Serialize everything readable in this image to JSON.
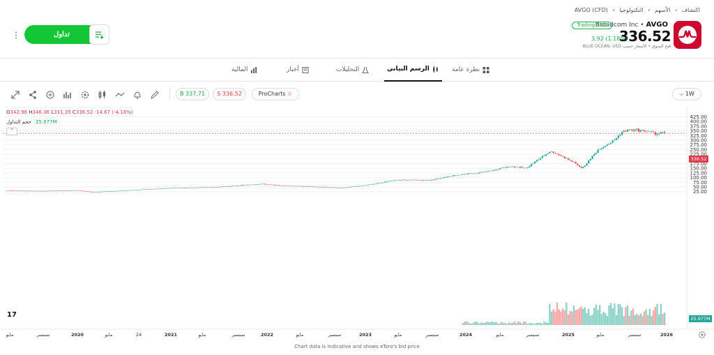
{
  "breadcrumb": [
    "اكتشاف",
    "›",
    "الأسهم",
    "›",
    "التكنولوجيا",
    "›",
    "AVGO (CFD)"
  ],
  "instrument": {
    "name": "Broadcom Inc",
    "separator": "•",
    "ticker": "AVGO",
    "badge": "Trading 24/5",
    "price": "336.52",
    "change": "3.92 (1.18%)",
    "subline": "فتح السوق • الأسعار حسب BLUE OCEAN، USD"
  },
  "actions": {
    "trade_label": "تداول",
    "more_label": "⋮"
  },
  "tabs": [
    {
      "label": "نظرة عامة",
      "icon": "grid-icon"
    },
    {
      "label": "الرسم البياني",
      "icon": "candles-icon"
    },
    {
      "label": "التحليلات",
      "icon": "flask-icon"
    },
    {
      "label": "أخبار",
      "icon": "news-icon"
    },
    {
      "label": "المالية",
      "icon": "bar-chart-icon"
    }
  ],
  "toolbar": {
    "buy": "B 337.71",
    "sell": "S 336.52",
    "pro": "ProCharts",
    "timeframe": "1W",
    "tools": [
      "expand-icon",
      "share-icon",
      "add-indicator-icon",
      "indicators-icon",
      "settings-icon",
      "candle-type-icon",
      "line-icon",
      "alert-icon",
      "draw-icon"
    ]
  },
  "ohlc": {
    "o_label": "O",
    "o": "342.98",
    "h_label": "H",
    "h": "346.36",
    "l_label": "L",
    "l": "331.35",
    "c_label": "C",
    "c": "336.52",
    "change": "-14.67 (-4.18%)"
  },
  "volume": {
    "label": "حجم التداول",
    "value": "25.977M",
    "collapse": "˄"
  },
  "colors": {
    "up": "#26a69a",
    "down": "#ef5350",
    "brand_green": "#13c636",
    "logo_red": "#cc092f"
  },
  "price_tag": "336.52",
  "volume_tag": "25.977M",
  "tv_logo": "17",
  "footnote": "Chart data is indicative and shows eToro's bid price",
  "chart_data": {
    "type": "candlestick",
    "y_axis_labels": [
      "425.00",
      "400.00",
      "375.00",
      "350.00",
      "325.00",
      "300.00",
      "275.00",
      "250.00",
      "225.00",
      "200.00",
      "175.00",
      "150.00",
      "125.00",
      "100.00",
      "75.00",
      "50.00",
      "25.00"
    ],
    "x_axis_labels": [
      "مايو",
      "سبتمبر",
      "2020",
      "مايو",
      "24",
      "2021",
      "مايو",
      "سبتمبر",
      "2022",
      "مايو",
      "سبتمبر",
      "2023",
      "مايو",
      "سبتمبر",
      "2024",
      "مايو",
      "سبتمبر",
      "2025",
      "مايو",
      "سبتمبر",
      "2026"
    ],
    "x_axis_bold": [
      "2020",
      "2021",
      "2022",
      "2023",
      "2024",
      "2025",
      "2026"
    ],
    "ylim": [
      0,
      425
    ],
    "price_anchors": [
      {
        "t": "2019-05",
        "v": 30
      },
      {
        "t": "2019-09",
        "v": 28
      },
      {
        "t": "2020-01",
        "v": 32
      },
      {
        "t": "2020-03",
        "v": 22
      },
      {
        "t": "2020-08",
        "v": 33
      },
      {
        "t": "2021-01",
        "v": 45
      },
      {
        "t": "2021-06",
        "v": 48
      },
      {
        "t": "2021-12",
        "v": 66
      },
      {
        "t": "2022-02",
        "v": 58
      },
      {
        "t": "2022-06",
        "v": 52
      },
      {
        "t": "2022-10",
        "v": 45
      },
      {
        "t": "2023-01",
        "v": 58
      },
      {
        "t": "2023-05",
        "v": 88
      },
      {
        "t": "2023-09",
        "v": 86
      },
      {
        "t": "2023-12",
        "v": 112
      },
      {
        "t": "2024-04",
        "v": 130
      },
      {
        "t": "2024-07",
        "v": 160
      },
      {
        "t": "2024-09",
        "v": 150
      },
      {
        "t": "2024-12",
        "v": 240
      },
      {
        "t": "2025-01",
        "v": 225
      },
      {
        "t": "2025-03",
        "v": 180
      },
      {
        "t": "2025-04",
        "v": 148
      },
      {
        "t": "2025-06",
        "v": 250
      },
      {
        "t": "2025-08",
        "v": 300
      },
      {
        "t": "2025-09",
        "v": 345
      },
      {
        "t": "2025-10",
        "v": 355
      },
      {
        "t": "2025-12",
        "v": 350
      },
      {
        "t": "2026-01",
        "v": 336.52
      }
    ],
    "volume_start": "2024-01",
    "volume_range_m": [
      5,
      100
    ],
    "last_close": 336.52
  }
}
